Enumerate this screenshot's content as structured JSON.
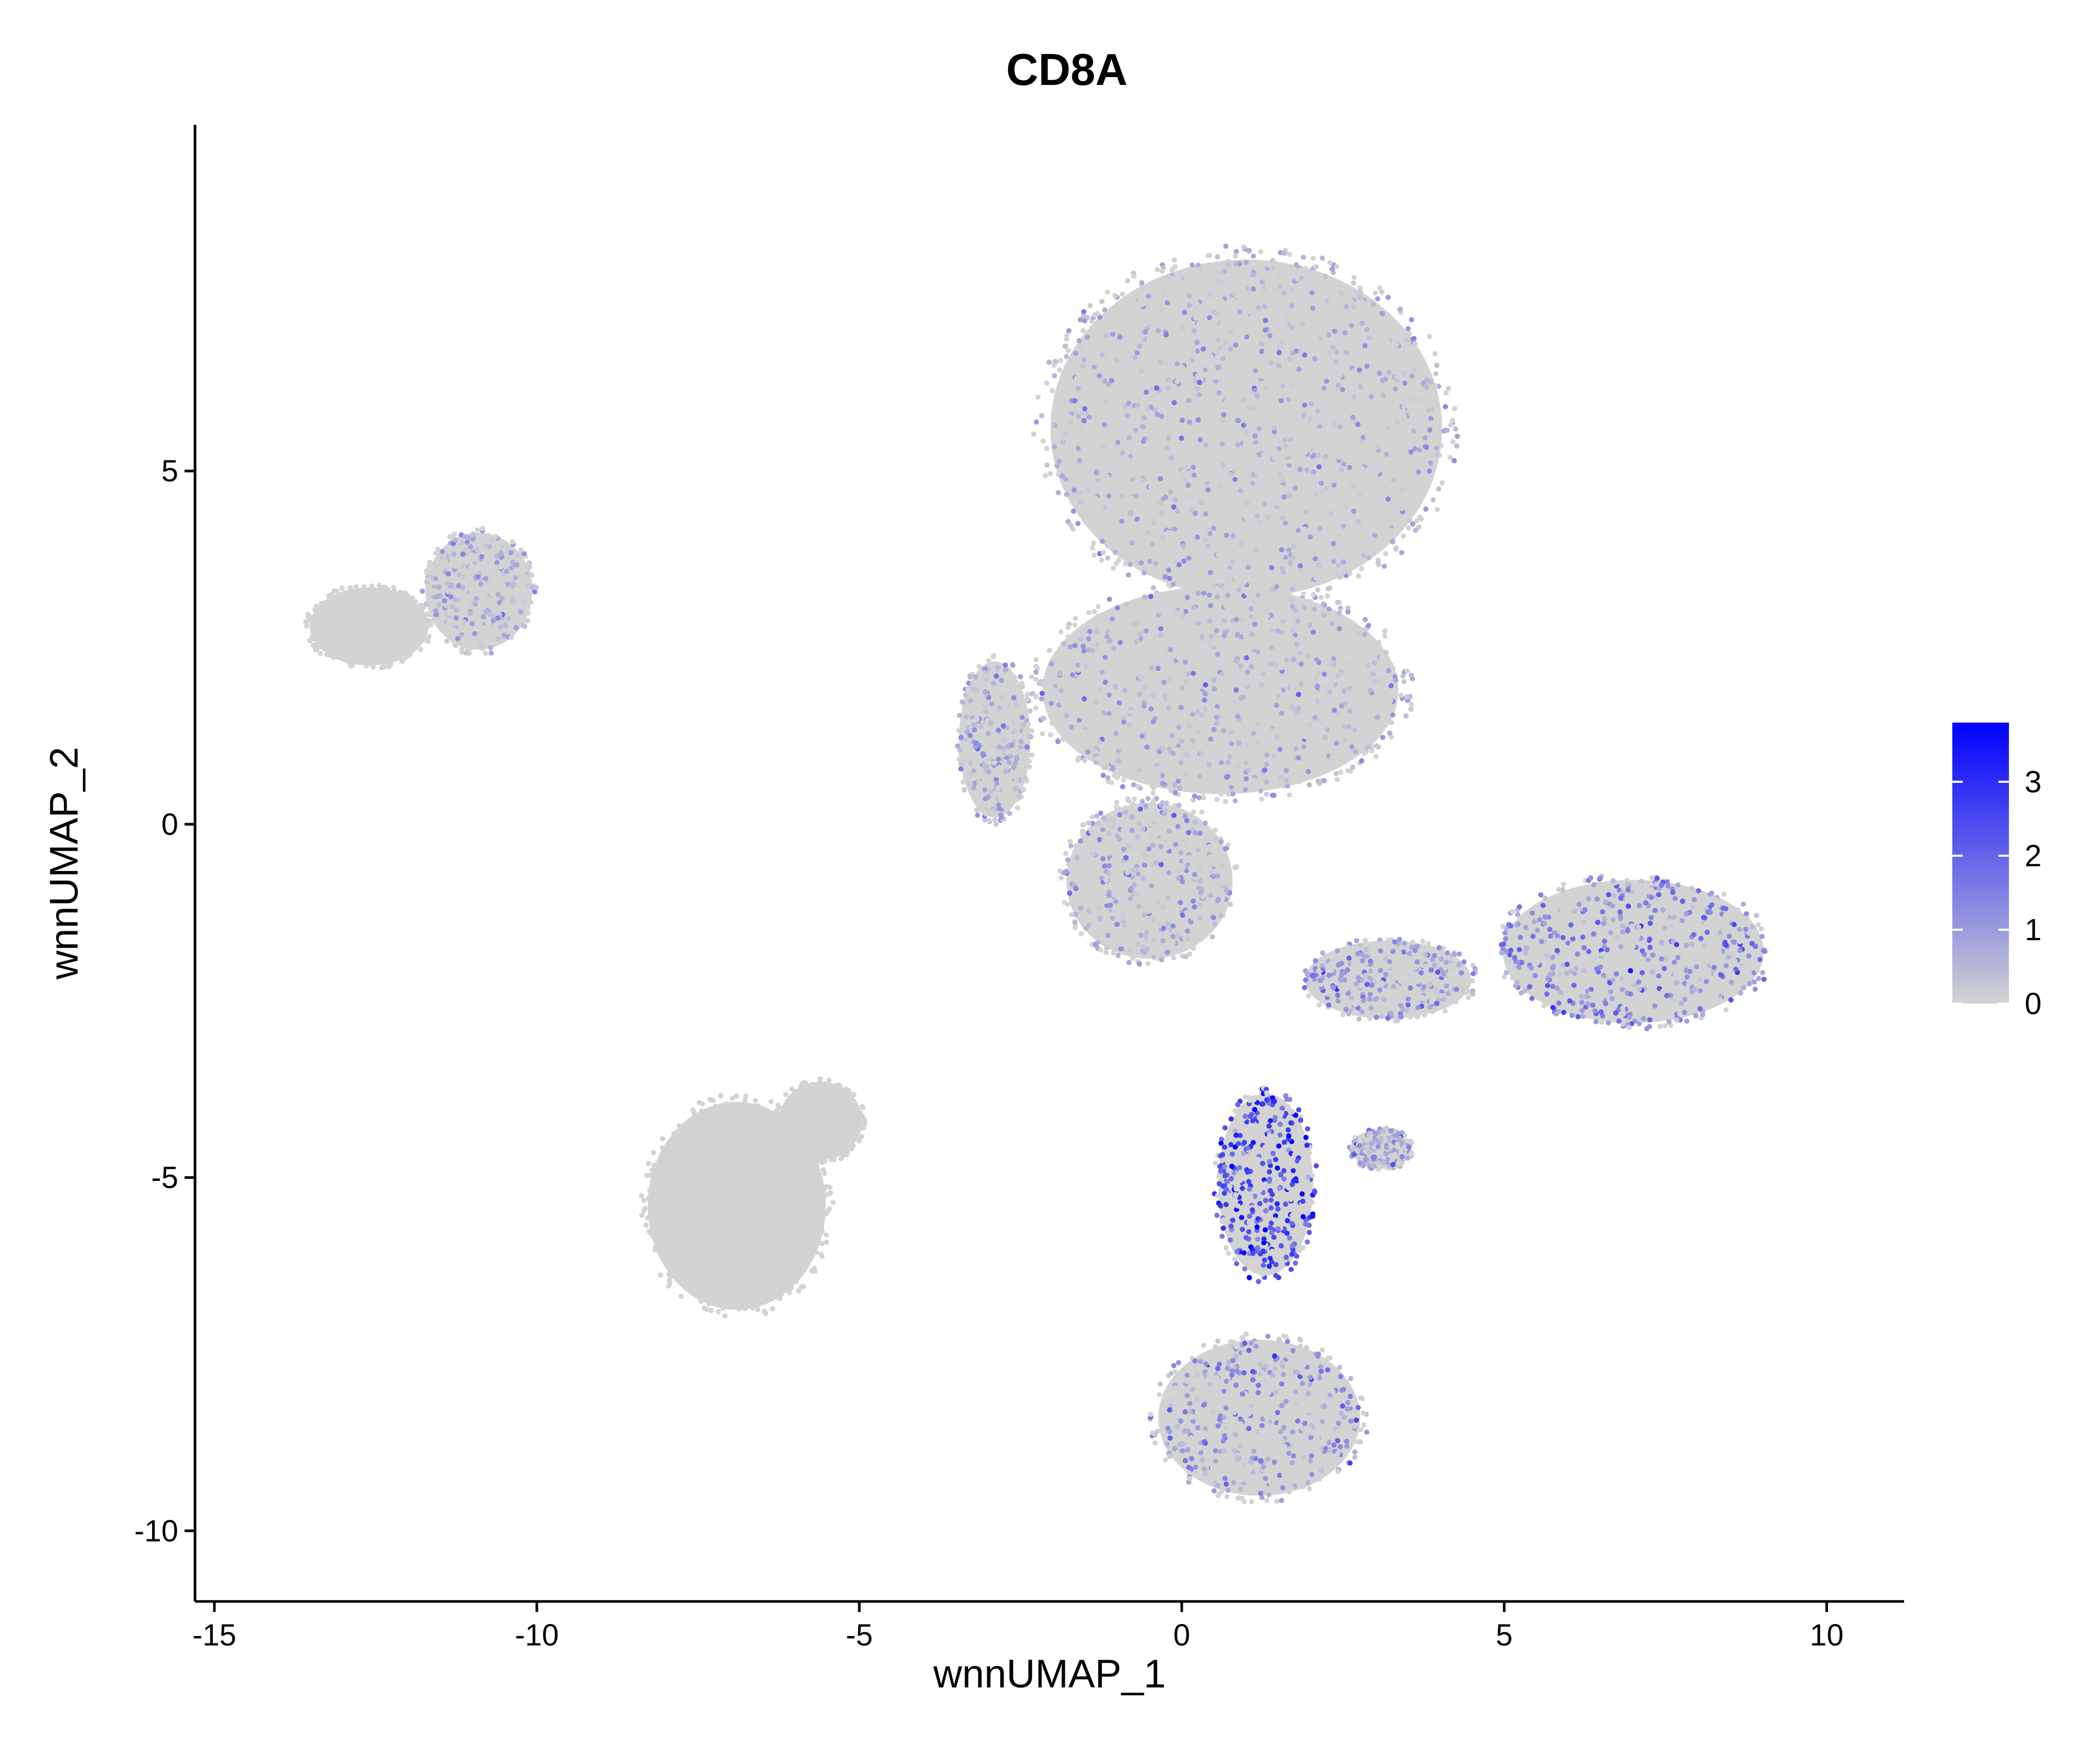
{
  "chart_data": {
    "type": "scatter",
    "title": "CD8A",
    "xlabel": "wnnUMAP_1",
    "ylabel": "wnnUMAP_2",
    "xlim": [
      -15.3,
      11.2
    ],
    "ylim": [
      -11.0,
      9.9
    ],
    "x_ticks": [
      -15,
      -10,
      -5,
      0,
      5,
      10
    ],
    "x_tick_labels": [
      "-15",
      "-10",
      "-5",
      "0",
      "5",
      "10"
    ],
    "y_ticks": [
      -10,
      -5,
      0,
      5
    ],
    "y_tick_labels": [
      "-10",
      "-5",
      "0",
      "5"
    ],
    "grid": false,
    "legend": {
      "placement": "right",
      "type": "colorbar",
      "range": [
        0,
        3.8
      ],
      "ticks": [
        0,
        1,
        2,
        3
      ],
      "tick_labels": [
        "0",
        "1",
        "2",
        "3"
      ],
      "color_low": "#D3D3D3",
      "color_high": "#0000FF"
    },
    "point_color_low": "#D3D3D3",
    "point_color_high": "#0000FF",
    "clusters": [
      {
        "shape": "ellipse",
        "center": [
          1.0,
          5.6
        ],
        "radius": [
          3.3,
          2.6
        ],
        "expression_level": 0.02
      },
      {
        "shape": "ellipse",
        "center": [
          0.6,
          1.9
        ],
        "radius": [
          3.0,
          1.6
        ],
        "expression_level": 0.05
      },
      {
        "shape": "ellipse",
        "center": [
          -2.9,
          1.2
        ],
        "radius": [
          0.6,
          1.2
        ],
        "expression_level": 0.05
      },
      {
        "shape": "ellipse",
        "center": [
          -0.5,
          -0.8
        ],
        "radius": [
          1.4,
          1.2
        ],
        "expression_level": 0.03
      },
      {
        "shape": "ellipse",
        "center": [
          -12.6,
          2.8
        ],
        "radius": [
          1.0,
          0.6
        ],
        "expression_level": 0.0
      },
      {
        "shape": "ellipse",
        "center": [
          -10.9,
          3.3
        ],
        "radius": [
          0.9,
          0.9
        ],
        "expression_level": 0.02
      },
      {
        "shape": "ellipse",
        "center": [
          -6.9,
          -5.4
        ],
        "radius": [
          1.5,
          1.6
        ],
        "expression_level": 0.0
      },
      {
        "shape": "ellipse",
        "center": [
          -5.6,
          -4.2
        ],
        "radius": [
          0.7,
          0.6
        ],
        "expression_level": 0.0
      },
      {
        "shape": "ellipse",
        "center": [
          7.0,
          -1.8
        ],
        "radius": [
          2.2,
          1.1
        ],
        "expression_level": 1.1
      },
      {
        "shape": "ellipse",
        "center": [
          1.3,
          -5.1
        ],
        "radius": [
          0.8,
          1.4
        ],
        "expression_level": 2.4
      },
      {
        "shape": "ellipse",
        "center": [
          1.2,
          -8.4
        ],
        "radius": [
          1.7,
          1.2
        ],
        "expression_level": 0.7
      },
      {
        "shape": "ellipse",
        "center": [
          3.2,
          -2.2
        ],
        "radius": [
          1.4,
          0.6
        ],
        "expression_level": 0.8
      },
      {
        "shape": "ellipse",
        "center": [
          3.1,
          -4.6
        ],
        "radius": [
          0.5,
          0.3
        ],
        "expression_level": 0.3
      }
    ]
  }
}
